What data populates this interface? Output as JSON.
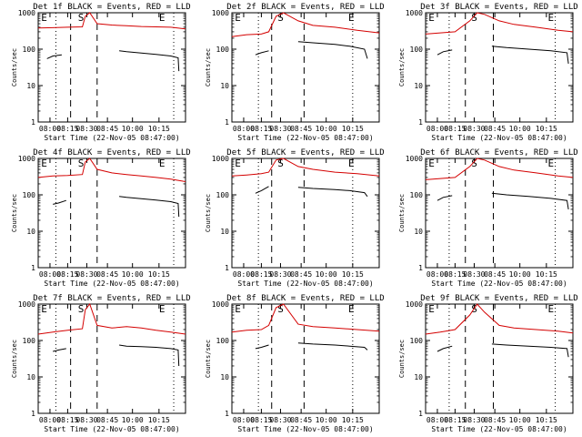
{
  "chart_data": [
    {
      "type": "line",
      "title": "Det 1f BLACK = Events, RED = LLD",
      "xlabel": "Start Time (22-Nov-05 08:47:00)",
      "ylabel": "Counts/sec",
      "x_ticks": [
        "08:00",
        "08:15",
        "08:30",
        "08:45",
        "10:00",
        "10:15"
      ],
      "y_ticks": [
        "1",
        "10",
        "100",
        "1000"
      ],
      "yscale": "log",
      "ylim": [
        1,
        1000
      ],
      "markers": [
        "E",
        "S",
        "E"
      ],
      "colors": {
        "events": "#000000",
        "lld": "#d40000"
      },
      "series": [
        {
          "name": "BLACK = Events",
          "x": [
            0.06,
            0.1,
            0.16,
            0.165,
            0.55,
            0.6,
            0.7,
            0.8,
            0.9,
            0.95,
            0.955
          ],
          "y": [
            55,
            65,
            70,
            null,
            90,
            85,
            78,
            72,
            65,
            58,
            25
          ]
        },
        {
          "name": "RED = LLD",
          "x": [
            0,
            0.1,
            0.2,
            0.3,
            0.32,
            0.35,
            0.4,
            0.5,
            0.6,
            0.7,
            0.8,
            0.9,
            1.0
          ],
          "y": [
            380,
            390,
            400,
            410,
            800,
            1200,
            500,
            460,
            440,
            420,
            410,
            400,
            360
          ]
        }
      ]
    },
    {
      "type": "line",
      "title": "Det 2f BLACK = Events, RED = LLD",
      "xlabel": "Start Time (22-Nov-05 08:47:00)",
      "ylabel": "Counts/sec",
      "x_ticks": [
        "08:00",
        "08:15",
        "08:30",
        "08:45",
        "10:00",
        "10:15"
      ],
      "y_ticks": [
        "1",
        "10",
        "100",
        "1000"
      ],
      "yscale": "log",
      "ylim": [
        1,
        1000
      ],
      "markers": [
        "E",
        "S",
        "E"
      ],
      "colors": {
        "events": "#000000",
        "lld": "#d40000"
      },
      "series": [
        {
          "name": "BLACK = Events",
          "x": [
            0.16,
            0.2,
            0.25,
            0.255,
            0.45,
            0.55,
            0.7,
            0.8,
            0.9,
            0.92
          ],
          "y": [
            70,
            80,
            90,
            null,
            160,
            150,
            135,
            120,
            100,
            55
          ]
        },
        {
          "name": "RED = LLD",
          "x": [
            0,
            0.1,
            0.2,
            0.25,
            0.3,
            0.35,
            0.45,
            0.55,
            0.7,
            0.85,
            1.0
          ],
          "y": [
            220,
            250,
            260,
            300,
            800,
            1100,
            600,
            450,
            400,
            330,
            280
          ]
        }
      ]
    },
    {
      "type": "line",
      "title": "Det 3f BLACK = Events, RED = LLD",
      "xlabel": "Start Time (22-Nov-05 08:47:00)",
      "ylabel": "Counts/sec",
      "x_ticks": [
        "08:00",
        "08:15",
        "08:30",
        "08:45",
        "10:00",
        "10:15"
      ],
      "y_ticks": [
        "1",
        "10",
        "100",
        "1000"
      ],
      "yscale": "log",
      "ylim": [
        1,
        1000
      ],
      "markers": [
        "E",
        "S",
        "E"
      ],
      "colors": {
        "events": "#000000",
        "lld": "#d40000"
      },
      "series": [
        {
          "name": "BLACK = Events",
          "x": [
            0.08,
            0.12,
            0.18,
            0.185,
            0.45,
            0.55,
            0.7,
            0.85,
            0.96,
            0.97
          ],
          "y": [
            70,
            85,
            95,
            null,
            120,
            110,
            100,
            90,
            80,
            40
          ]
        },
        {
          "name": "RED = LLD",
          "x": [
            0,
            0.1,
            0.2,
            0.3,
            0.35,
            0.4,
            0.5,
            0.6,
            0.75,
            0.9,
            1.0
          ],
          "y": [
            260,
            280,
            300,
            600,
            1200,
            900,
            600,
            480,
            400,
            330,
            300
          ]
        }
      ]
    },
    {
      "type": "line",
      "title": "Det 4f BLACK = Events, RED = LLD",
      "xlabel": "Start Time (22-Nov-05 08:47:00)",
      "ylabel": "Counts/sec",
      "x_ticks": [
        "08:00",
        "08:15",
        "08:30",
        "08:45",
        "10:00",
        "10:15"
      ],
      "y_ticks": [
        "1",
        "10",
        "100",
        "1000"
      ],
      "yscale": "log",
      "ylim": [
        1,
        1000
      ],
      "markers": [
        "E",
        "S",
        "E"
      ],
      "colors": {
        "events": "#000000",
        "lld": "#d40000"
      },
      "series": [
        {
          "name": "BLACK = Events",
          "x": [
            0.1,
            0.14,
            0.19,
            0.195,
            0.55,
            0.6,
            0.7,
            0.8,
            0.9,
            0.95,
            0.955
          ],
          "y": [
            55,
            60,
            70,
            null,
            90,
            85,
            78,
            72,
            65,
            58,
            25
          ]
        },
        {
          "name": "RED = LLD",
          "x": [
            0,
            0.1,
            0.2,
            0.3,
            0.32,
            0.35,
            0.4,
            0.5,
            0.6,
            0.7,
            0.8,
            0.9,
            1.0
          ],
          "y": [
            300,
            330,
            340,
            360,
            800,
            1200,
            500,
            400,
            360,
            330,
            300,
            270,
            230
          ]
        }
      ]
    },
    {
      "type": "line",
      "title": "Det 5f BLACK = Events, RED = LLD",
      "xlabel": "Start Time (22-Nov-05 08:47:00)",
      "ylabel": "Counts/sec",
      "x_ticks": [
        "08:00",
        "08:15",
        "08:30",
        "08:45",
        "10:00",
        "10:15"
      ],
      "y_ticks": [
        "1",
        "10",
        "100",
        "1000"
      ],
      "yscale": "log",
      "ylim": [
        1,
        1000
      ],
      "markers": [
        "E",
        "S",
        "E"
      ],
      "colors": {
        "events": "#000000",
        "lld": "#d40000"
      },
      "series": [
        {
          "name": "BLACK = Events",
          "x": [
            0.16,
            0.2,
            0.25,
            0.255,
            0.45,
            0.55,
            0.7,
            0.8,
            0.9,
            0.92
          ],
          "y": [
            110,
            130,
            170,
            null,
            160,
            150,
            140,
            130,
            115,
            90
          ]
        },
        {
          "name": "RED = LLD",
          "x": [
            0,
            0.1,
            0.2,
            0.25,
            0.3,
            0.35,
            0.45,
            0.55,
            0.7,
            0.85,
            1.0
          ],
          "y": [
            330,
            350,
            380,
            420,
            900,
            1200,
            600,
            500,
            420,
            380,
            330
          ]
        }
      ]
    },
    {
      "type": "line",
      "title": "Det 6f BLACK = Events, RED = LLD",
      "xlabel": "Start Time (22-Nov-05 08:47:00)",
      "ylabel": "Counts/sec",
      "x_ticks": [
        "08:00",
        "08:15",
        "08:30",
        "08:45",
        "10:00",
        "10:15"
      ],
      "y_ticks": [
        "1",
        "10",
        "100",
        "1000"
      ],
      "yscale": "log",
      "ylim": [
        1,
        1000
      ],
      "markers": [
        "E",
        "S",
        "E"
      ],
      "colors": {
        "events": "#000000",
        "lld": "#d40000"
      },
      "series": [
        {
          "name": "BLACK = Events",
          "x": [
            0.08,
            0.12,
            0.18,
            0.185,
            0.45,
            0.55,
            0.7,
            0.85,
            0.96,
            0.97
          ],
          "y": [
            70,
            85,
            95,
            null,
            110,
            100,
            90,
            80,
            70,
            40
          ]
        },
        {
          "name": "RED = LLD",
          "x": [
            0,
            0.1,
            0.2,
            0.3,
            0.35,
            0.4,
            0.5,
            0.6,
            0.75,
            0.9,
            1.0
          ],
          "y": [
            260,
            280,
            300,
            600,
            1200,
            900,
            600,
            480,
            400,
            330,
            300
          ]
        }
      ]
    },
    {
      "type": "line",
      "title": "Det 7f BLACK = Events, RED = LLD",
      "xlabel": "Start Time (22-Nov-05 08:47:00)",
      "ylabel": "Counts/sec",
      "x_ticks": [
        "08:00",
        "08:15",
        "08:30",
        "08:45",
        "10:00",
        "10:15"
      ],
      "y_ticks": [
        "1",
        "10",
        "100",
        "1000"
      ],
      "yscale": "log",
      "ylim": [
        1,
        1000
      ],
      "markers": [
        "E",
        "S",
        "E"
      ],
      "colors": {
        "events": "#000000",
        "lld": "#d40000"
      },
      "series": [
        {
          "name": "BLACK = Events",
          "x": [
            0.1,
            0.14,
            0.19,
            0.195,
            0.55,
            0.6,
            0.7,
            0.8,
            0.9,
            0.95,
            0.955
          ],
          "y": [
            50,
            55,
            60,
            null,
            75,
            70,
            68,
            65,
            60,
            55,
            20
          ]
        },
        {
          "name": "RED = LLD",
          "x": [
            0,
            0.1,
            0.2,
            0.3,
            0.32,
            0.35,
            0.4,
            0.5,
            0.6,
            0.7,
            0.8,
            0.9,
            1.0
          ],
          "y": [
            150,
            170,
            190,
            210,
            700,
            1100,
            260,
            220,
            240,
            220,
            190,
            170,
            150
          ]
        }
      ]
    },
    {
      "type": "line",
      "title": "Det 8f BLACK = Events, RED = LLD",
      "xlabel": "Start Time (22-Nov-05 08:47:00)",
      "ylabel": "Counts/sec",
      "x_ticks": [
        "08:00",
        "08:15",
        "08:30",
        "08:45",
        "10:00",
        "10:15"
      ],
      "y_ticks": [
        "1",
        "10",
        "100",
        "1000"
      ],
      "yscale": "log",
      "ylim": [
        1,
        1000
      ],
      "markers": [
        "E",
        "S",
        "E"
      ],
      "colors": {
        "events": "#000000",
        "lld": "#d40000"
      },
      "series": [
        {
          "name": "BLACK = Events",
          "x": [
            0.16,
            0.2,
            0.25,
            0.255,
            0.45,
            0.55,
            0.7,
            0.8,
            0.9,
            0.92
          ],
          "y": [
            60,
            65,
            75,
            null,
            85,
            80,
            75,
            70,
            65,
            55
          ]
        },
        {
          "name": "RED = LLD",
          "x": [
            0,
            0.1,
            0.2,
            0.25,
            0.3,
            0.35,
            0.45,
            0.55,
            0.7,
            0.85,
            1.0
          ],
          "y": [
            170,
            190,
            200,
            260,
            800,
            1100,
            280,
            240,
            220,
            200,
            180
          ]
        }
      ]
    },
    {
      "type": "line",
      "title": "Det 9f BLACK = Events, RED = LLD",
      "xlabel": "Start Time (22-Nov-05 08:47:00)",
      "ylabel": "Counts/sec",
      "x_ticks": [
        "08:00",
        "08:15",
        "08:30",
        "08:45",
        "10:00",
        "10:15"
      ],
      "y_ticks": [
        "1",
        "10",
        "100",
        "1000"
      ],
      "yscale": "log",
      "ylim": [
        1,
        1000
      ],
      "markers": [
        "E",
        "S",
        "E"
      ],
      "colors": {
        "events": "#000000",
        "lld": "#d40000"
      },
      "series": [
        {
          "name": "BLACK = Events",
          "x": [
            0.08,
            0.12,
            0.18,
            0.185,
            0.45,
            0.55,
            0.7,
            0.85,
            0.96,
            0.97
          ],
          "y": [
            50,
            60,
            70,
            null,
            80,
            75,
            70,
            65,
            60,
            35
          ]
        },
        {
          "name": "RED = LLD",
          "x": [
            0,
            0.1,
            0.2,
            0.3,
            0.35,
            0.4,
            0.5,
            0.6,
            0.75,
            0.9,
            1.0
          ],
          "y": [
            150,
            170,
            200,
            500,
            1100,
            600,
            260,
            220,
            200,
            180,
            160
          ]
        }
      ]
    }
  ]
}
